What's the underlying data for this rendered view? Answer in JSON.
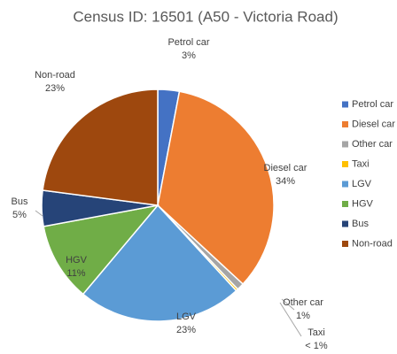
{
  "chart_data": {
    "type": "pie",
    "title": "Census ID: 16501 (A50 - Victoria Road)",
    "categories": [
      "Petrol car",
      "Diesel car",
      "Other car",
      "Taxi",
      "LGV",
      "HGV",
      "Bus",
      "Non-road"
    ],
    "values": [
      3,
      34,
      1,
      0.3,
      23,
      11,
      5,
      23
    ],
    "value_labels": [
      "3%",
      "34%",
      "1%",
      "< 1%",
      "23%",
      "11%",
      "5%",
      "23%"
    ],
    "colors": [
      "#4472c4",
      "#ed7d31",
      "#a5a5a5",
      "#ffc000",
      "#5b9bd5",
      "#70ad47",
      "#264478",
      "#9e480e"
    ],
    "legend": "right"
  }
}
